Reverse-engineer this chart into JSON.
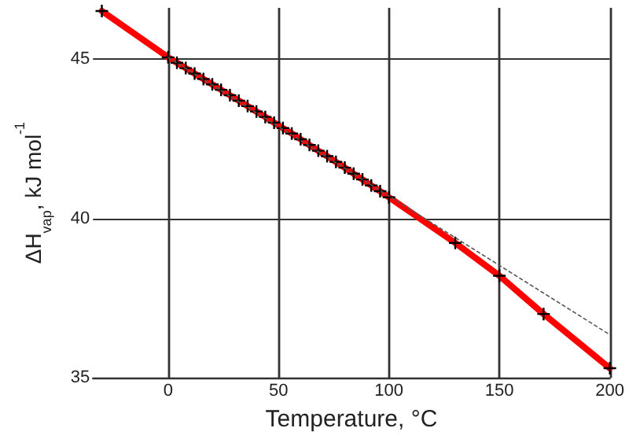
{
  "chart_data": {
    "type": "line",
    "xlabel": "Temperature, °C",
    "ylabel": "ΔH$_{vap}$, kJ mol$^{-1}$",
    "xlim": [
      -34,
      200
    ],
    "xticks": [
      0,
      50,
      100,
      150,
      200
    ],
    "ylim": [
      35,
      46.6
    ],
    "yticks": [
      35,
      40,
      45
    ],
    "grid": true,
    "series": [
      {
        "color": "#ff0000",
        "marker": "cross",
        "line_style": "solid",
        "x": [
          -30,
          0,
          4,
          8,
          12,
          16,
          20,
          24,
          28,
          32,
          36,
          40,
          44,
          48,
          52,
          56,
          60,
          64,
          68,
          72,
          76,
          80,
          84,
          88,
          92,
          96,
          100,
          130,
          150,
          170,
          200
        ],
        "values": [
          46.5,
          45.05,
          44.88,
          44.71,
          44.54,
          44.37,
          44.2,
          44.03,
          43.86,
          43.69,
          43.52,
          43.35,
          43.18,
          43.0,
          42.83,
          42.66,
          42.48,
          42.3,
          42.12,
          41.95,
          41.77,
          41.59,
          41.4,
          41.22,
          41.03,
          40.85,
          40.66,
          39.23,
          38.2,
          37.0,
          35.3
        ]
      },
      {
        "color": "#555555",
        "marker": "none",
        "line_style": "dotted",
        "x": [
          0,
          200
        ],
        "values": [
          45.05,
          36.35
        ]
      }
    ]
  }
}
